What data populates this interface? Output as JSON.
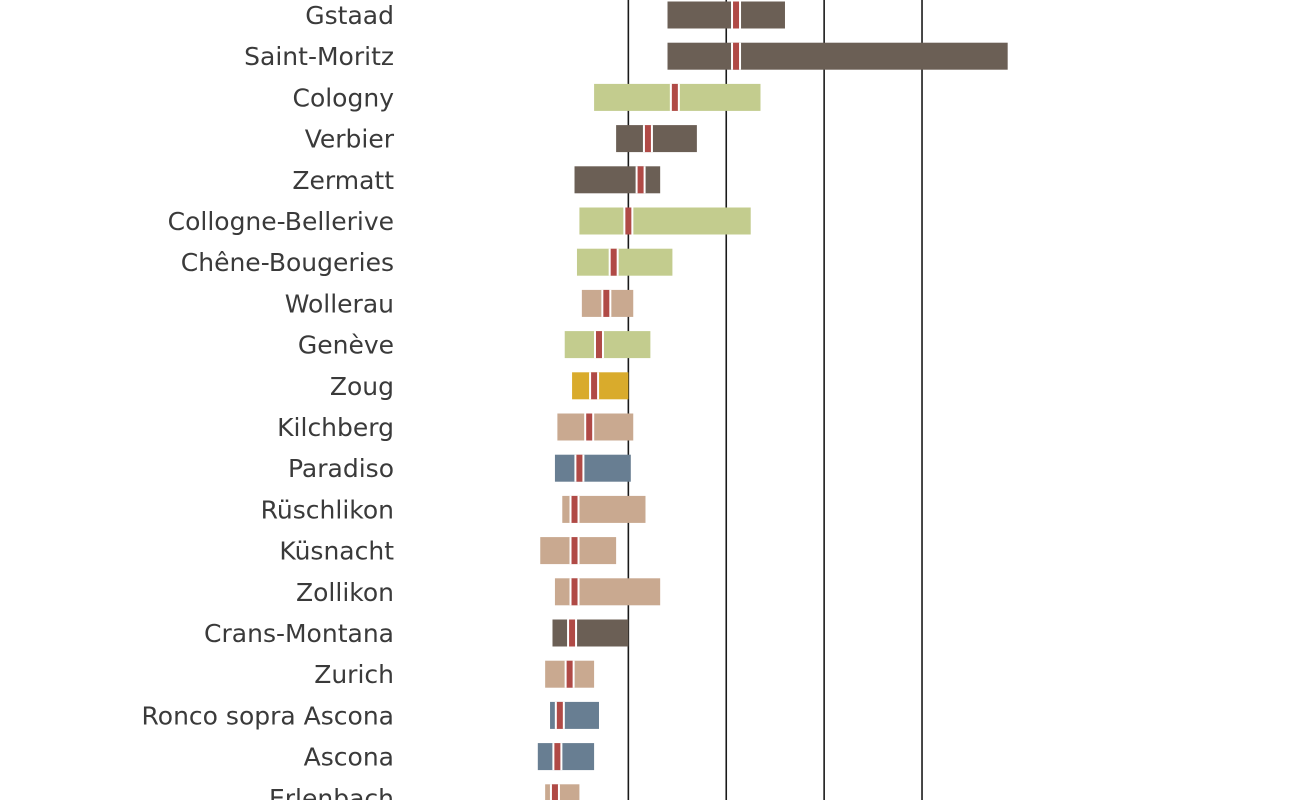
{
  "chart_data": {
    "type": "range-bar",
    "title": "",
    "xlabel": "",
    "ylabel": "",
    "xlim": [
      0,
      18
    ],
    "gridlines_at": [
      4.4,
      6.4,
      8.4,
      10.4
    ],
    "categories": [
      "Gstaad",
      "Saint-Moritz",
      "Cologny",
      "Verbier",
      "Zermatt",
      "Collogne-Bellerive",
      "Chêne-Bougeries",
      "Wollerau",
      "Genève",
      "Zoug",
      "Kilchberg",
      "Paradiso",
      "Rüschlikon",
      "Küsnacht",
      "Zollikon",
      "Crans-Montana",
      "Zurich",
      "Ronco sopra Ascona",
      "Ascona",
      "Erlenbach"
    ],
    "color_groups": {
      "mountain": "#6b5f55",
      "geneva": "#c3cc8e",
      "zurich": "#c9a990",
      "zug": "#d9ab2c",
      "ticino": "#687e92"
    },
    "median_color": "#b04a46",
    "series": [
      {
        "category": "Gstaad",
        "group": "mountain",
        "low": 5.2,
        "median": 6.6,
        "high": 7.6
      },
      {
        "category": "Saint-Moritz",
        "group": "mountain",
        "low": 5.2,
        "median": 6.6,
        "high": 12.15
      },
      {
        "category": "Cologny",
        "group": "geneva",
        "low": 3.7,
        "median": 5.35,
        "high": 7.1
      },
      {
        "category": "Verbier",
        "group": "mountain",
        "low": 4.15,
        "median": 4.8,
        "high": 5.8
      },
      {
        "category": "Zermatt",
        "group": "mountain",
        "low": 3.3,
        "median": 4.65,
        "high": 5.05
      },
      {
        "category": "Collogne-Bellerive",
        "group": "geneva",
        "low": 3.4,
        "median": 4.4,
        "high": 6.9
      },
      {
        "category": "Chêne-Bougeries",
        "group": "geneva",
        "low": 3.35,
        "median": 4.1,
        "high": 5.3
      },
      {
        "category": "Wollerau",
        "group": "zurich",
        "low": 3.45,
        "median": 3.95,
        "high": 4.5
      },
      {
        "category": "Genève",
        "group": "geneva",
        "low": 3.1,
        "median": 3.8,
        "high": 4.85
      },
      {
        "category": "Zoug",
        "group": "zug",
        "low": 3.25,
        "median": 3.7,
        "high": 4.4
      },
      {
        "category": "Kilchberg",
        "group": "zurich",
        "low": 2.95,
        "median": 3.6,
        "high": 4.5
      },
      {
        "category": "Paradiso",
        "group": "ticino",
        "low": 2.9,
        "median": 3.4,
        "high": 4.45
      },
      {
        "category": "Rüschlikon",
        "group": "zurich",
        "low": 3.05,
        "median": 3.3,
        "high": 4.75
      },
      {
        "category": "Küsnacht",
        "group": "zurich",
        "low": 2.6,
        "median": 3.3,
        "high": 4.15
      },
      {
        "category": "Zollikon",
        "group": "zurich",
        "low": 2.9,
        "median": 3.3,
        "high": 5.05
      },
      {
        "category": "Crans-Montana",
        "group": "mountain",
        "low": 2.85,
        "median": 3.25,
        "high": 4.4
      },
      {
        "category": "Zurich",
        "group": "zurich",
        "low": 2.7,
        "median": 3.2,
        "high": 3.7
      },
      {
        "category": "Ronco sopra Ascona",
        "group": "ticino",
        "low": 2.8,
        "median": 3.0,
        "high": 3.8
      },
      {
        "category": "Ascona",
        "group": "ticino",
        "low": 2.55,
        "median": 2.95,
        "high": 3.7
      },
      {
        "category": "Erlenbach",
        "group": "zurich",
        "low": 2.7,
        "median": 2.9,
        "high": 3.4
      }
    ]
  }
}
